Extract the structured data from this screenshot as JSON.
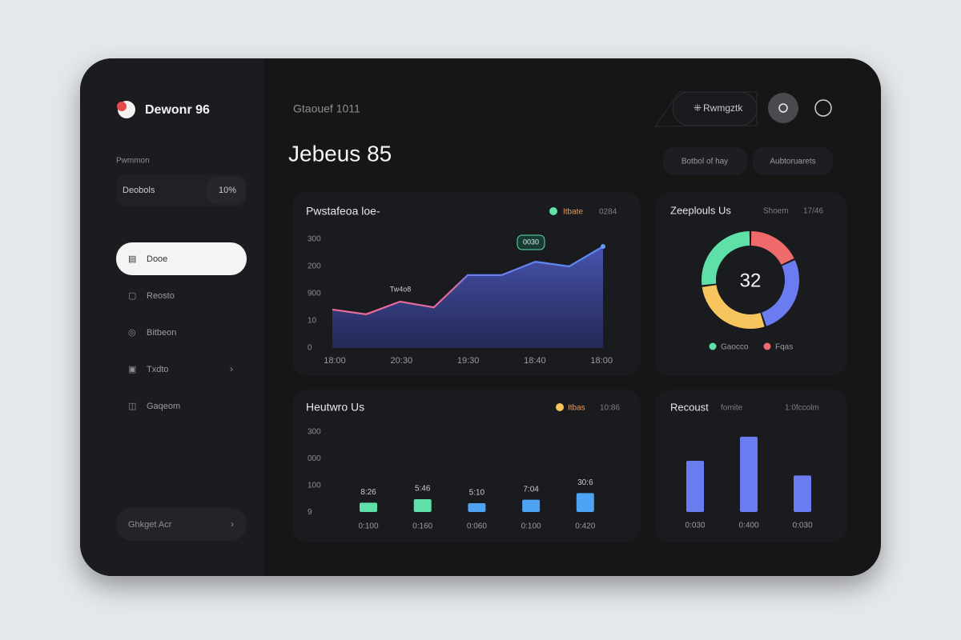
{
  "sidebar": {
    "brand": "Dewonr 96",
    "section": "Pwmmon",
    "stat": {
      "label": "Deobols",
      "value": "10%"
    },
    "nav": [
      "Dooe",
      "Reosto",
      "Bitbeon",
      "Txdto",
      "Gaqeom"
    ],
    "footer": "Ghkget Acr"
  },
  "header": {
    "breadcrumb": "Gtaouef 1011",
    "title": "Jebeus 85",
    "button": "Rwmgztk",
    "filters": [
      "Botbol of hay",
      "Aubtoruarets"
    ]
  },
  "area_panel": {
    "title": "Pwstafeoa loe-",
    "legend": {
      "name": "Itbate",
      "value": "0284"
    },
    "y_labels": [
      "300",
      "200",
      "900",
      "10",
      "0"
    ],
    "ylim": [
      0,
      300
    ],
    "values": [
      106,
      93,
      128,
      112,
      201,
      201,
      238,
      225,
      280
    ],
    "x_labels": [
      "18:00",
      "20:30",
      "19:30",
      "18:40",
      "18:00"
    ],
    "tooltip": "0030",
    "annotation": "Tw4o8"
  },
  "donut_panel": {
    "title": "Zeeplouls Us",
    "meta": [
      "Shoem",
      "17/46"
    ],
    "center": "32",
    "values": [
      18,
      27,
      28,
      27
    ],
    "colors": [
      "#ef6b6b",
      "#6b7cf0",
      "#f7c45e",
      "#5ee0a8"
    ],
    "legend": [
      {
        "name": "Gaocco",
        "color": "#5ee0a8"
      },
      {
        "name": "Fqas",
        "color": "#ef6b6b"
      }
    ]
  },
  "bar_panel": {
    "title": "Heutwro Us",
    "legend": {
      "name": "Itbas",
      "value": "10:86"
    },
    "y_labels": [
      "300",
      "000",
      "100",
      "9"
    ],
    "ylim": [
      0,
      300
    ],
    "values": [
      35,
      48,
      33,
      46,
      71
    ],
    "colors": [
      "#5ee0a8",
      "#5ee0a8",
      "#4ea3f5",
      "#4ea3f5",
      "#4ea3f5"
    ],
    "annotations": [
      "8:26",
      "5:46",
      "5:10",
      "7:04",
      "30:6"
    ],
    "x_labels": [
      "0:100",
      "0:160",
      "0:060",
      "0:100",
      "0:420"
    ]
  },
  "recent_panel": {
    "title": "Recoust",
    "meta": [
      "fomite",
      "1:0fccolm"
    ],
    "ylim": [
      0,
      100
    ],
    "values": [
      66,
      97,
      47
    ],
    "color": "#6b7cf0",
    "x_labels": [
      "0:030",
      "0:400",
      "0:030"
    ]
  }
}
